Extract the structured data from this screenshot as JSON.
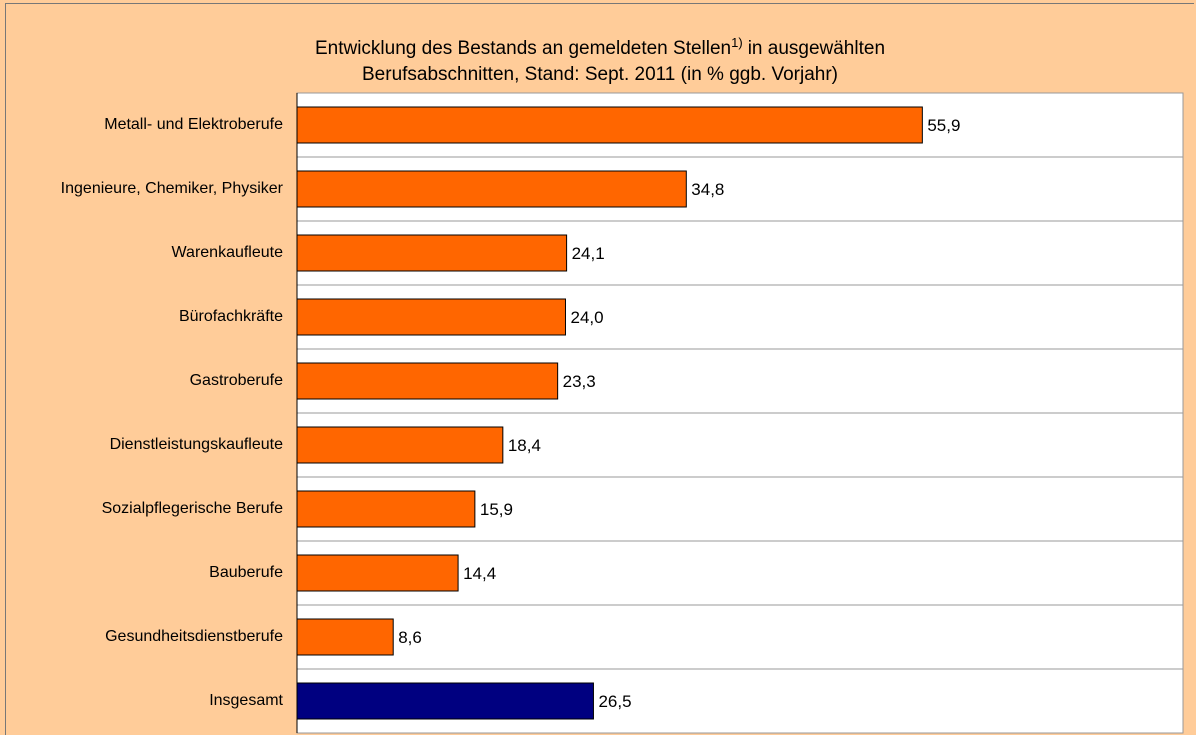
{
  "chart_data": {
    "type": "hbar",
    "title_parts": [
      "Entwicklung des Bestands an gemeldeten Stellen",
      "1)",
      "in ausgewählten",
      "Berufsabschnitten, Stand: Sept. 2011 (in % ggb. Vorjahr)"
    ],
    "categories": [
      "Metall- und Elektroberufe",
      "Ingenieure, Chemiker, Physiker",
      "Warenkaufleute",
      "Bürofachkräfte",
      "Gastroberufe",
      "Dienstleistungskaufleute",
      "Sozialpflegerische Berufe",
      "Bauberufe",
      "Gesundheitsdienstberufe",
      "Insgesamt"
    ],
    "values": [
      55.9,
      34.8,
      24.1,
      24.0,
      23.3,
      18.4,
      15.9,
      14.4,
      8.6,
      26.5
    ],
    "value_labels": [
      "55,9",
      "34,8",
      "24,1",
      "24,0",
      "23,3",
      "18,4",
      "15,9",
      "14,4",
      "8,6",
      "26,5"
    ],
    "colors": [
      "#ff6600",
      "#ff6600",
      "#ff6600",
      "#ff6600",
      "#ff6600",
      "#ff6600",
      "#ff6600",
      "#ff6600",
      "#ff6600",
      "#000080"
    ],
    "xlim": [
      0,
      79.2
    ]
  }
}
